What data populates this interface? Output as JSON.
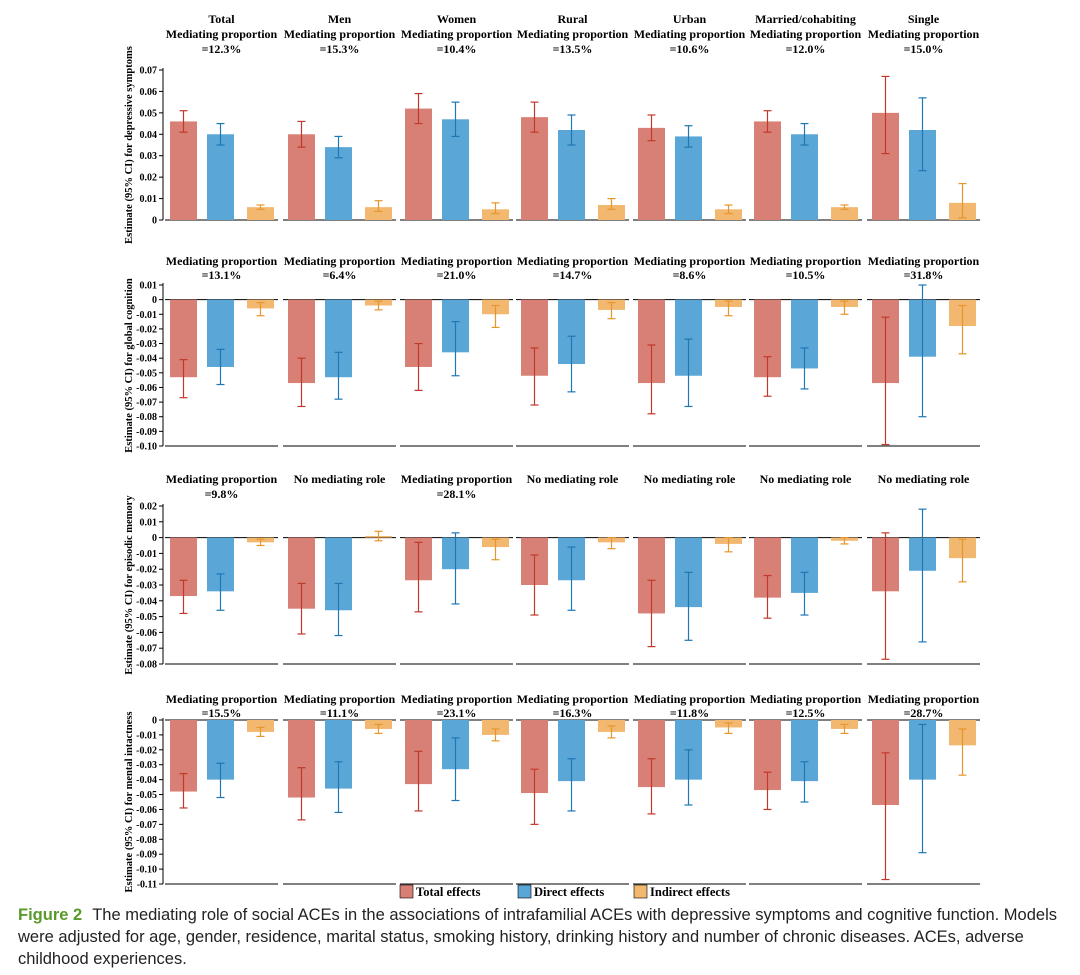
{
  "caption": {
    "label": "Figure 2",
    "text": "The mediating role of social ACEs in the associations of intrafamilial ACEs with depressive symptoms and cognitive function. Models were adjusted for age, gender, residence, marital status, smoking history, drinking history and number of chronic diseases. ACEs, adverse childhood experiences."
  },
  "colors": {
    "total": "#d98076",
    "direct": "#5aa6d6",
    "indirect": "#f2b870",
    "total_err": "#c0392b",
    "direct_err": "#1f77b4",
    "indirect_err": "#e6962a"
  },
  "legend": [
    "Total effects",
    "Direct effects",
    "Indirect effects"
  ],
  "chart_data": {
    "type": "bar",
    "groups": [
      "Total",
      "Men",
      "Women",
      "Rural",
      "Urban",
      "Married/cohabiting",
      "Single"
    ],
    "series_names": [
      "Total effects",
      "Direct effects",
      "Indirect effects"
    ],
    "panels": [
      {
        "ylabel": "Estimate (95% CI) for depressive symptoms",
        "ylim": [
          0,
          0.07
        ],
        "ticks": [
          {
            "v": 0,
            "label": "0"
          },
          {
            "v": 0.01,
            "label": "0.01"
          },
          {
            "v": 0.02,
            "label": "0.02"
          },
          {
            "v": 0.03,
            "label": "0.03"
          },
          {
            "v": 0.04,
            "label": "0.04"
          },
          {
            "v": 0.05,
            "label": "0.05"
          },
          {
            "v": 0.06,
            "label": "0.06"
          },
          {
            "v": 0.07,
            "label": "0.07"
          }
        ],
        "headers": [
          [
            "Total",
            "Mediating proportion",
            "=12.3%"
          ],
          [
            "Men",
            "Mediating proportion",
            "=15.3%"
          ],
          [
            "Women",
            "Mediating proportion",
            "=10.4%"
          ],
          [
            "Rural",
            "Mediating proportion",
            "=13.5%"
          ],
          [
            "Urban",
            "Mediating proportion",
            "=10.6%"
          ],
          [
            "Married/cohabiting",
            "Mediating proportion",
            "=12.0%"
          ],
          [
            "Single",
            "Mediating proportion",
            "=15.0%"
          ]
        ],
        "values": [
          [
            [
              0.046,
              0.041,
              0.051
            ],
            [
              0.04,
              0.035,
              0.045
            ],
            [
              0.006,
              0.005,
              0.007
            ]
          ],
          [
            [
              0.04,
              0.034,
              0.046
            ],
            [
              0.034,
              0.029,
              0.039
            ],
            [
              0.006,
              0.004,
              0.009
            ]
          ],
          [
            [
              0.052,
              0.045,
              0.059
            ],
            [
              0.047,
              0.039,
              0.055
            ],
            [
              0.005,
              0.003,
              0.008
            ]
          ],
          [
            [
              0.048,
              0.041,
              0.055
            ],
            [
              0.042,
              0.035,
              0.049
            ],
            [
              0.007,
              0.005,
              0.01
            ]
          ],
          [
            [
              0.043,
              0.037,
              0.049
            ],
            [
              0.039,
              0.034,
              0.044
            ],
            [
              0.005,
              0.003,
              0.007
            ]
          ],
          [
            [
              0.046,
              0.041,
              0.051
            ],
            [
              0.04,
              0.035,
              0.045
            ],
            [
              0.006,
              0.005,
              0.007
            ]
          ],
          [
            [
              0.05,
              0.031,
              0.067
            ],
            [
              0.042,
              0.023,
              0.057
            ],
            [
              0.008,
              0.001,
              0.017
            ]
          ]
        ]
      },
      {
        "ylabel": "Estimate (95% CI) for global cognition",
        "ylim": [
          -0.1,
          0.01
        ],
        "ticks": [
          {
            "v": 0.01,
            "label": "0.01"
          },
          {
            "v": 0,
            "label": "0"
          },
          {
            "v": -0.01,
            "label": "-0.01"
          },
          {
            "v": -0.02,
            "label": "-0.02"
          },
          {
            "v": -0.03,
            "label": "-0.03"
          },
          {
            "v": -0.04,
            "label": "-0.04"
          },
          {
            "v": -0.05,
            "label": "-0.05"
          },
          {
            "v": -0.06,
            "label": "-0.06"
          },
          {
            "v": -0.07,
            "label": "-0.07"
          },
          {
            "v": -0.08,
            "label": "-0.08"
          },
          {
            "v": -0.09,
            "label": "-0.09"
          },
          {
            "v": -0.1,
            "label": "-0.10"
          }
        ],
        "headers": [
          [
            "",
            "Mediating proportion",
            "=13.1%"
          ],
          [
            "",
            "Mediating proportion",
            "=6.4%"
          ],
          [
            "",
            "Mediating proportion",
            "=21.0%"
          ],
          [
            "",
            "Mediating proportion",
            "=14.7%"
          ],
          [
            "",
            "Mediating proportion",
            "=8.6%"
          ],
          [
            "",
            "Mediating proportion",
            "=10.5%"
          ],
          [
            "",
            "Mediating proportion",
            "=31.8%"
          ]
        ],
        "values": [
          [
            [
              -0.053,
              -0.067,
              -0.041
            ],
            [
              -0.046,
              -0.058,
              -0.034
            ],
            [
              -0.006,
              -0.011,
              -0.002
            ]
          ],
          [
            [
              -0.057,
              -0.073,
              -0.04
            ],
            [
              -0.053,
              -0.068,
              -0.036
            ],
            [
              -0.004,
              -0.007,
              -0.001
            ]
          ],
          [
            [
              -0.046,
              -0.062,
              -0.03
            ],
            [
              -0.036,
              -0.052,
              -0.015
            ],
            [
              -0.01,
              -0.019,
              -0.004
            ]
          ],
          [
            [
              -0.052,
              -0.072,
              -0.033
            ],
            [
              -0.044,
              -0.063,
              -0.025
            ],
            [
              -0.007,
              -0.013,
              -0.002
            ]
          ],
          [
            [
              -0.057,
              -0.078,
              -0.031
            ],
            [
              -0.052,
              -0.073,
              -0.027
            ],
            [
              -0.005,
              -0.011,
              -0.001
            ]
          ],
          [
            [
              -0.053,
              -0.066,
              -0.039
            ],
            [
              -0.047,
              -0.061,
              -0.033
            ],
            [
              -0.005,
              -0.01,
              -0.001
            ]
          ],
          [
            [
              -0.057,
              -0.099,
              -0.012
            ],
            [
              -0.039,
              -0.08,
              0.01
            ],
            [
              -0.018,
              -0.037,
              -0.004
            ]
          ]
        ]
      },
      {
        "ylabel": "Estimate (95% CI) for episodic memory",
        "ylim": [
          -0.08,
          0.02
        ],
        "ticks": [
          {
            "v": 0.02,
            "label": "0.02"
          },
          {
            "v": 0.01,
            "label": "0.01"
          },
          {
            "v": 0,
            "label": "0"
          },
          {
            "v": -0.01,
            "label": "-0.01"
          },
          {
            "v": -0.02,
            "label": "-0.02"
          },
          {
            "v": -0.03,
            "label": "-0.03"
          },
          {
            "v": -0.04,
            "label": "-0.04"
          },
          {
            "v": -0.05,
            "label": "-0.05"
          },
          {
            "v": -0.06,
            "label": "-0.06"
          },
          {
            "v": -0.07,
            "label": "-0.07"
          },
          {
            "v": -0.08,
            "label": "-0.08"
          }
        ],
        "headers": [
          [
            "",
            "Mediating proportion",
            "=9.8%"
          ],
          [
            "",
            "No mediating role",
            ""
          ],
          [
            "",
            "Mediating proportion",
            "=28.1%"
          ],
          [
            "",
            "No mediating role",
            ""
          ],
          [
            "",
            "No mediating role",
            ""
          ],
          [
            "",
            "No mediating role",
            ""
          ],
          [
            "",
            "No mediating role",
            ""
          ]
        ],
        "values": [
          [
            [
              -0.037,
              -0.048,
              -0.027
            ],
            [
              -0.034,
              -0.046,
              -0.023
            ],
            [
              -0.003,
              -0.005,
              -0.001
            ]
          ],
          [
            [
              -0.045,
              -0.061,
              -0.029
            ],
            [
              -0.046,
              -0.062,
              -0.029
            ],
            [
              0.001,
              -0.002,
              0.004
            ]
          ],
          [
            [
              -0.027,
              -0.047,
              -0.003
            ],
            [
              -0.02,
              -0.042,
              0.003
            ],
            [
              -0.006,
              -0.014,
              -0.001
            ]
          ],
          [
            [
              -0.03,
              -0.049,
              -0.011
            ],
            [
              -0.027,
              -0.046,
              -0.006
            ],
            [
              -0.003,
              -0.007,
              0.0
            ]
          ],
          [
            [
              -0.048,
              -0.069,
              -0.027
            ],
            [
              -0.044,
              -0.065,
              -0.022
            ],
            [
              -0.004,
              -0.009,
              0.0
            ]
          ],
          [
            [
              -0.038,
              -0.051,
              -0.024
            ],
            [
              -0.035,
              -0.049,
              -0.022
            ],
            [
              -0.002,
              -0.004,
              0.0
            ]
          ],
          [
            [
              -0.034,
              -0.077,
              0.003
            ],
            [
              -0.021,
              -0.066,
              0.018
            ],
            [
              -0.013,
              -0.028,
              -0.001
            ]
          ]
        ]
      },
      {
        "ylabel": "Estimate (95% CI) for mental intactness",
        "ylim": [
          -0.11,
          0
        ],
        "ticks": [
          {
            "v": 0,
            "label": "0"
          },
          {
            "v": -0.01,
            "label": "-0.01"
          },
          {
            "v": -0.02,
            "label": "-0.02"
          },
          {
            "v": -0.03,
            "label": "-0.03"
          },
          {
            "v": -0.04,
            "label": "-0.04"
          },
          {
            "v": -0.05,
            "label": "-0.05"
          },
          {
            "v": -0.06,
            "label": "-0.06"
          },
          {
            "v": -0.07,
            "label": "-0.07"
          },
          {
            "v": -0.08,
            "label": "-0.08"
          },
          {
            "v": -0.09,
            "label": "-0.09"
          },
          {
            "v": -0.1,
            "label": "-0.10"
          },
          {
            "v": -0.11,
            "label": "-0.11"
          }
        ],
        "headers": [
          [
            "",
            "Mediating proportion",
            "=15.5%"
          ],
          [
            "",
            "Mediating proportion",
            "=11.1%"
          ],
          [
            "",
            "Mediating proportion",
            "=23.1%"
          ],
          [
            "",
            "Mediating proportion",
            "=16.3%"
          ],
          [
            "",
            "Mediating proportion",
            "=11.8%"
          ],
          [
            "",
            "Mediating proportion",
            "=12.5%"
          ],
          [
            "",
            "Mediating proportion",
            "=28.7%"
          ]
        ],
        "values": [
          [
            [
              -0.048,
              -0.059,
              -0.036
            ],
            [
              -0.04,
              -0.052,
              -0.029
            ],
            [
              -0.008,
              -0.011,
              -0.005
            ]
          ],
          [
            [
              -0.052,
              -0.067,
              -0.032
            ],
            [
              -0.046,
              -0.062,
              -0.028
            ],
            [
              -0.006,
              -0.009,
              -0.003
            ]
          ],
          [
            [
              -0.043,
              -0.061,
              -0.021
            ],
            [
              -0.033,
              -0.054,
              -0.012
            ],
            [
              -0.01,
              -0.014,
              -0.006
            ]
          ],
          [
            [
              -0.049,
              -0.07,
              -0.033
            ],
            [
              -0.041,
              -0.061,
              -0.026
            ],
            [
              -0.008,
              -0.012,
              -0.004
            ]
          ],
          [
            [
              -0.045,
              -0.063,
              -0.026
            ],
            [
              -0.04,
              -0.057,
              -0.02
            ],
            [
              -0.005,
              -0.009,
              -0.002
            ]
          ],
          [
            [
              -0.047,
              -0.06,
              -0.035
            ],
            [
              -0.041,
              -0.055,
              -0.028
            ],
            [
              -0.006,
              -0.009,
              -0.003
            ]
          ],
          [
            [
              -0.057,
              -0.107,
              -0.022
            ],
            [
              -0.04,
              -0.089,
              -0.003
            ],
            [
              -0.017,
              -0.037,
              -0.006
            ]
          ]
        ]
      }
    ]
  }
}
